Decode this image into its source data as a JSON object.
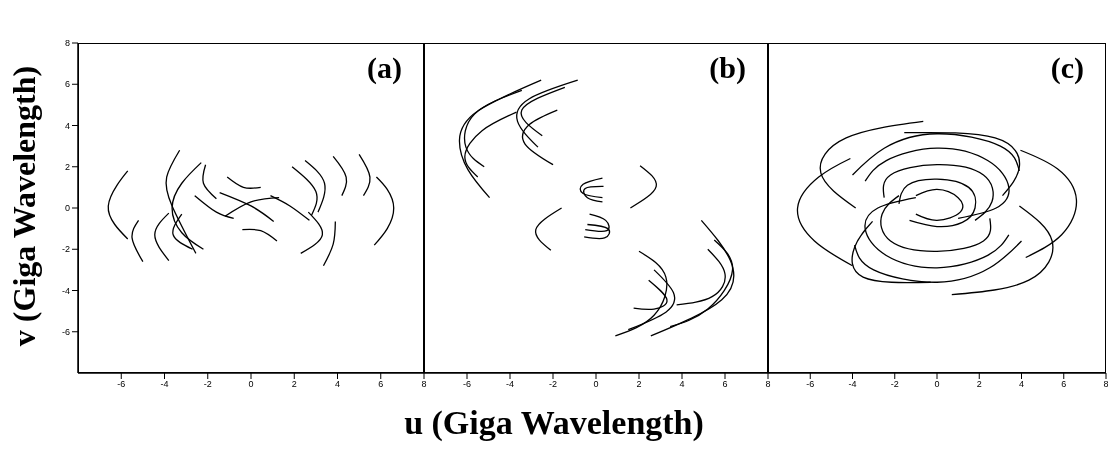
{
  "chart_data": [
    {
      "type": "line",
      "ylabel": "v  (Giga Wavelength)",
      "annotations": [
        "(a)"
      ],
      "xlim": [
        -8,
        8
      ],
      "ylim": [
        -8,
        8
      ],
      "xticks": [
        -6,
        -4,
        -2,
        0,
        2,
        4,
        6,
        8
      ],
      "yticks": [
        -6,
        -4,
        -2,
        0,
        2,
        4,
        6,
        8
      ],
      "marker": "none",
      "grid": false,
      "series": [
        {
          "color": "#000000",
          "x": [
            -5.7,
            -6.2,
            -6.6,
            -6.3,
            -5.7
          ],
          "values": [
            1.8,
            1.1,
            0.1,
            -0.8,
            -1.5
          ]
        },
        {
          "color": "#000000",
          "x": [
            -5.2,
            -5.5,
            -5.0
          ],
          "values": [
            -0.6,
            -1.45,
            -2.6
          ]
        },
        {
          "color": "#000000",
          "x": [
            5.8,
            6.3,
            6.6,
            6.3,
            5.7
          ],
          "values": [
            1.5,
            0.9,
            0,
            -1.0,
            -1.8
          ]
        },
        {
          "color": "#000000",
          "x": [
            5.0,
            5.5,
            5.2
          ],
          "values": [
            2.6,
            1.5,
            0.6
          ]
        },
        {
          "color": "#000000",
          "x": [
            3.8,
            4.4,
            4.2
          ],
          "values": [
            2.5,
            1.5,
            0.6
          ]
        },
        {
          "color": "#000000",
          "x": [
            -3.3,
            -3.9,
            -3.65,
            -2.55
          ],
          "values": [
            2.8,
            1.5,
            0.1,
            -2.2
          ]
        },
        {
          "color": "#000000",
          "x": [
            -2.3,
            -3.2,
            -3.65,
            -3.2,
            -2.2
          ],
          "values": [
            2.2,
            1.2,
            0,
            -1.2,
            -2.0
          ]
        },
        {
          "color": "#000000",
          "x": [
            -2.1,
            -2.2,
            -1.6
          ],
          "values": [
            2.1,
            1.2,
            0.45
          ]
        },
        {
          "color": "#000000",
          "x": [
            -1.1,
            -0.35,
            0.45
          ],
          "values": [
            1.5,
            1.0,
            1.0
          ]
        },
        {
          "color": "#000000",
          "x": [
            -0.4,
            0.45,
            1.2
          ],
          "values": [
            -1.05,
            -1.1,
            -1.6
          ]
        },
        {
          "color": "#000000",
          "x": [
            -3.8,
            -4.45,
            -3.8
          ],
          "values": [
            -0.25,
            -1.3,
            -2.55
          ]
        },
        {
          "color": "#000000",
          "x": [
            -3.2,
            -3.6,
            -2.7
          ],
          "values": [
            -0.3,
            -1.3,
            -2.0
          ]
        },
        {
          "color": "#000000",
          "x": [
            3.9,
            3.8,
            3.35
          ],
          "values": [
            -0.65,
            -1.75,
            -2.8
          ]
        },
        {
          "color": "#000000",
          "x": [
            2.65,
            3.3,
            2.3
          ],
          "values": [
            -0.2,
            -1.3,
            -2.2
          ]
        },
        {
          "color": "#000000",
          "x": [
            2.5,
            3.4,
            3.1
          ],
          "values": [
            2.3,
            1.2,
            -0.2
          ]
        },
        {
          "color": "#000000",
          "x": [
            1.9,
            3.0,
            2.8
          ],
          "values": [
            2.0,
            0.8,
            -0.35
          ]
        },
        {
          "color": "#000000",
          "x": [
            -1.45,
            0,
            1.05
          ],
          "values": [
            0.75,
            0.1,
            -0.65
          ]
        },
        {
          "color": "#000000",
          "x": [
            -1.2,
            0,
            1.3
          ],
          "values": [
            -0.4,
            0.3,
            0.5
          ]
        },
        {
          "color": "#000000",
          "x": [
            -2.6,
            -1.6,
            -0.8
          ],
          "values": [
            0.6,
            -0.2,
            -0.5
          ]
        },
        {
          "color": "#000000",
          "x": [
            0.9,
            1.8,
            2.7
          ],
          "values": [
            0.6,
            0.1,
            -0.6
          ]
        }
      ]
    },
    {
      "type": "line",
      "xlabel": "u  (Giga Wavelength)",
      "annotations": [
        "(b)"
      ],
      "xlim": [
        -8,
        8
      ],
      "ylim": [
        -8,
        8
      ],
      "xticks": [
        -6,
        -4,
        -2,
        0,
        2,
        4,
        6,
        8
      ],
      "yticks": [
        -6,
        -4,
        -2,
        0,
        2,
        4,
        6,
        8
      ],
      "tick_labels": "x",
      "marker": "none",
      "grid": false,
      "series": [
        {
          "color": "#000000",
          "x": [
            -2.55,
            -5.5,
            -6.35,
            -5.95,
            -4.95
          ],
          "values": [
            6.2,
            4.7,
            3.3,
            1.85,
            0.5
          ]
        },
        {
          "color": "#000000",
          "x": [
            -3.45,
            -5.65,
            -6.05,
            -5.2
          ],
          "values": [
            5.7,
            4.55,
            2.95,
            2.0
          ]
        },
        {
          "color": "#000000",
          "x": [
            -3.7,
            -5.3,
            -6.1,
            -5.5
          ],
          "values": [
            4.65,
            3.75,
            2.5,
            1.5
          ]
        },
        {
          "color": "#000000",
          "x": [
            -0.85,
            -3.1,
            -3.65,
            -2.7
          ],
          "values": [
            6.2,
            5.3,
            4.2,
            2.95
          ]
        },
        {
          "color": "#000000",
          "x": [
            -1.45,
            -3.45,
            -2.5
          ],
          "values": [
            5.85,
            4.75,
            3.5
          ]
        },
        {
          "color": "#000000",
          "x": [
            -1.8,
            -3.1,
            -3.3,
            -2.0
          ],
          "values": [
            4.75,
            4.05,
            3.1,
            2.1
          ]
        },
        {
          "color": "#000000",
          "x": [
            2.05,
            2.8,
            1.6
          ],
          "values": [
            2.05,
            1.05,
            0
          ]
        },
        {
          "color": "#000000",
          "x": [
            -1.6,
            -2.8,
            -2.1
          ],
          "values": [
            0,
            -1.05,
            -2.05
          ]
        },
        {
          "color": "#000000",
          "x": [
            0.3,
            -0.6,
            -0.6,
            0.3
          ],
          "values": [
            1.45,
            1.15,
            0.7,
            0.5
          ]
        },
        {
          "color": "#000000",
          "x": [
            0.35,
            -0.5,
            -0.4,
            0.3
          ],
          "values": [
            1.05,
            0.95,
            0.5,
            0.3
          ]
        },
        {
          "color": "#000000",
          "x": [
            -0.3,
            0.45,
            0.5,
            -0.5
          ],
          "values": [
            -0.3,
            -0.6,
            -1.1,
            -1.05
          ]
        },
        {
          "color": "#000000",
          "x": [
            -0.4,
            0.55,
            0.4,
            -0.55
          ],
          "values": [
            -0.8,
            -1.0,
            -1.45,
            -1.4
          ]
        },
        {
          "color": "#000000",
          "x": [
            4.9,
            6.25,
            5.85,
            2.55
          ],
          "values": [
            -0.6,
            -2.55,
            -4.45,
            -6.2
          ]
        },
        {
          "color": "#000000",
          "x": [
            5.5,
            6.35,
            5.2,
            3.45
          ],
          "values": [
            -1.55,
            -3.0,
            -4.9,
            -5.75
          ]
        },
        {
          "color": "#000000",
          "x": [
            5.2,
            6.0,
            5.4,
            3.75
          ],
          "values": [
            -2.0,
            -3.2,
            -4.3,
            -4.7
          ]
        },
        {
          "color": "#000000",
          "x": [
            2.0,
            3.25,
            2.7,
            0.9
          ],
          "values": [
            -2.1,
            -3.35,
            -5.2,
            -6.2
          ]
        },
        {
          "color": "#000000",
          "x": [
            2.7,
            3.6,
            3.25,
            1.5
          ],
          "values": [
            -3.0,
            -4.1,
            -5.05,
            -5.9
          ]
        },
        {
          "color": "#000000",
          "x": [
            2.45,
            3.3,
            2.7,
            1.75
          ],
          "values": [
            -3.5,
            -4.45,
            -4.9,
            -4.85
          ]
        }
      ]
    },
    {
      "type": "line",
      "annotations": [
        "(c)"
      ],
      "xlim": [
        -8,
        8
      ],
      "ylim": [
        -8,
        8
      ],
      "xticks": [
        -6,
        -4,
        -2,
        0,
        2,
        4,
        6,
        8
      ],
      "yticks": [
        -6,
        -4,
        -2,
        0,
        2,
        4,
        6,
        8
      ],
      "tick_labels": "x",
      "marker": "none",
      "grid": false,
      "series": [
        {
          "color": "#000000",
          "x": [
            -4.1,
            -5.6,
            -6.6,
            -5.8,
            -4.0
          ],
          "values": [
            2.4,
            1.5,
            0,
            -1.6,
            -2.8
          ]
        },
        {
          "color": "#000000",
          "x": [
            3.95,
            5.7,
            6.6,
            5.9,
            4.2
          ],
          "values": [
            2.8,
            1.9,
            0.4,
            -1.3,
            -2.4
          ]
        },
        {
          "color": "#000000",
          "x": [
            -0.65,
            -4.3,
            -5.5,
            -3.85
          ],
          "values": [
            4.2,
            3.4,
            1.7,
            0
          ]
        },
        {
          "color": "#000000",
          "x": [
            0.7,
            4.35,
            5.45,
            3.9
          ],
          "values": [
            -4.2,
            -3.5,
            -1.6,
            0.1
          ]
        },
        {
          "color": "#000000",
          "x": [
            -1.55,
            2.75,
            3.9,
            3.1
          ],
          "values": [
            3.65,
            3.4,
            2.0,
            0.6
          ]
        },
        {
          "color": "#000000",
          "x": [
            -0.3,
            -3.5,
            -3.9,
            -3.05
          ],
          "values": [
            -3.6,
            -3.35,
            -1.9,
            -0.65
          ]
        },
        {
          "color": "#000000",
          "x": [
            -3.4,
            -2.4,
            0,
            2.4,
            3.4,
            2.8,
            1
          ],
          "values": [
            1.3,
            2.3,
            2.9,
            2.3,
            1.0,
            0,
            -0.5
          ]
        },
        {
          "color": "#000000",
          "x": [
            3.4,
            2.4,
            0,
            -2.4,
            -3.4,
            -2.8,
            -1
          ],
          "values": [
            -1.3,
            -2.3,
            -2.9,
            -2.3,
            -1.0,
            0,
            0.5
          ]
        },
        {
          "color": "#000000",
          "x": [
            -2.5,
            -2.2,
            0,
            2.2,
            2.6,
            1.8
          ],
          "values": [
            0.5,
            1.6,
            2.1,
            1.6,
            0.3,
            -0.6
          ]
        },
        {
          "color": "#000000",
          "x": [
            2.5,
            2.2,
            0,
            -2.2,
            -2.6,
            -1.8
          ],
          "values": [
            -0.5,
            -1.6,
            -2.1,
            -1.6,
            -0.3,
            0.6
          ]
        },
        {
          "color": "#000000",
          "x": [
            -1.8,
            -1.4,
            0,
            1.5,
            1.8,
            1.2,
            0,
            -1.3
          ],
          "values": [
            0.2,
            1.1,
            1.4,
            1.0,
            0,
            -0.7,
            -0.9,
            -0.6
          ]
        },
        {
          "color": "#000000",
          "x": [
            -1,
            0,
            1,
            1.1,
            0,
            -1
          ],
          "values": [
            0.6,
            0.9,
            0.5,
            -0.2,
            -0.6,
            -0.3
          ]
        },
        {
          "color": "#000000",
          "x": [
            -4.0,
            -2.5,
            0,
            3.0,
            3.9
          ],
          "values": [
            1.6,
            2.9,
            3.6,
            3.0,
            1.8
          ]
        },
        {
          "color": "#000000",
          "x": [
            4.0,
            2.5,
            0,
            -3.0,
            -3.9
          ],
          "values": [
            -1.6,
            -2.9,
            -3.6,
            -3.0,
            -1.8
          ]
        }
      ]
    }
  ]
}
